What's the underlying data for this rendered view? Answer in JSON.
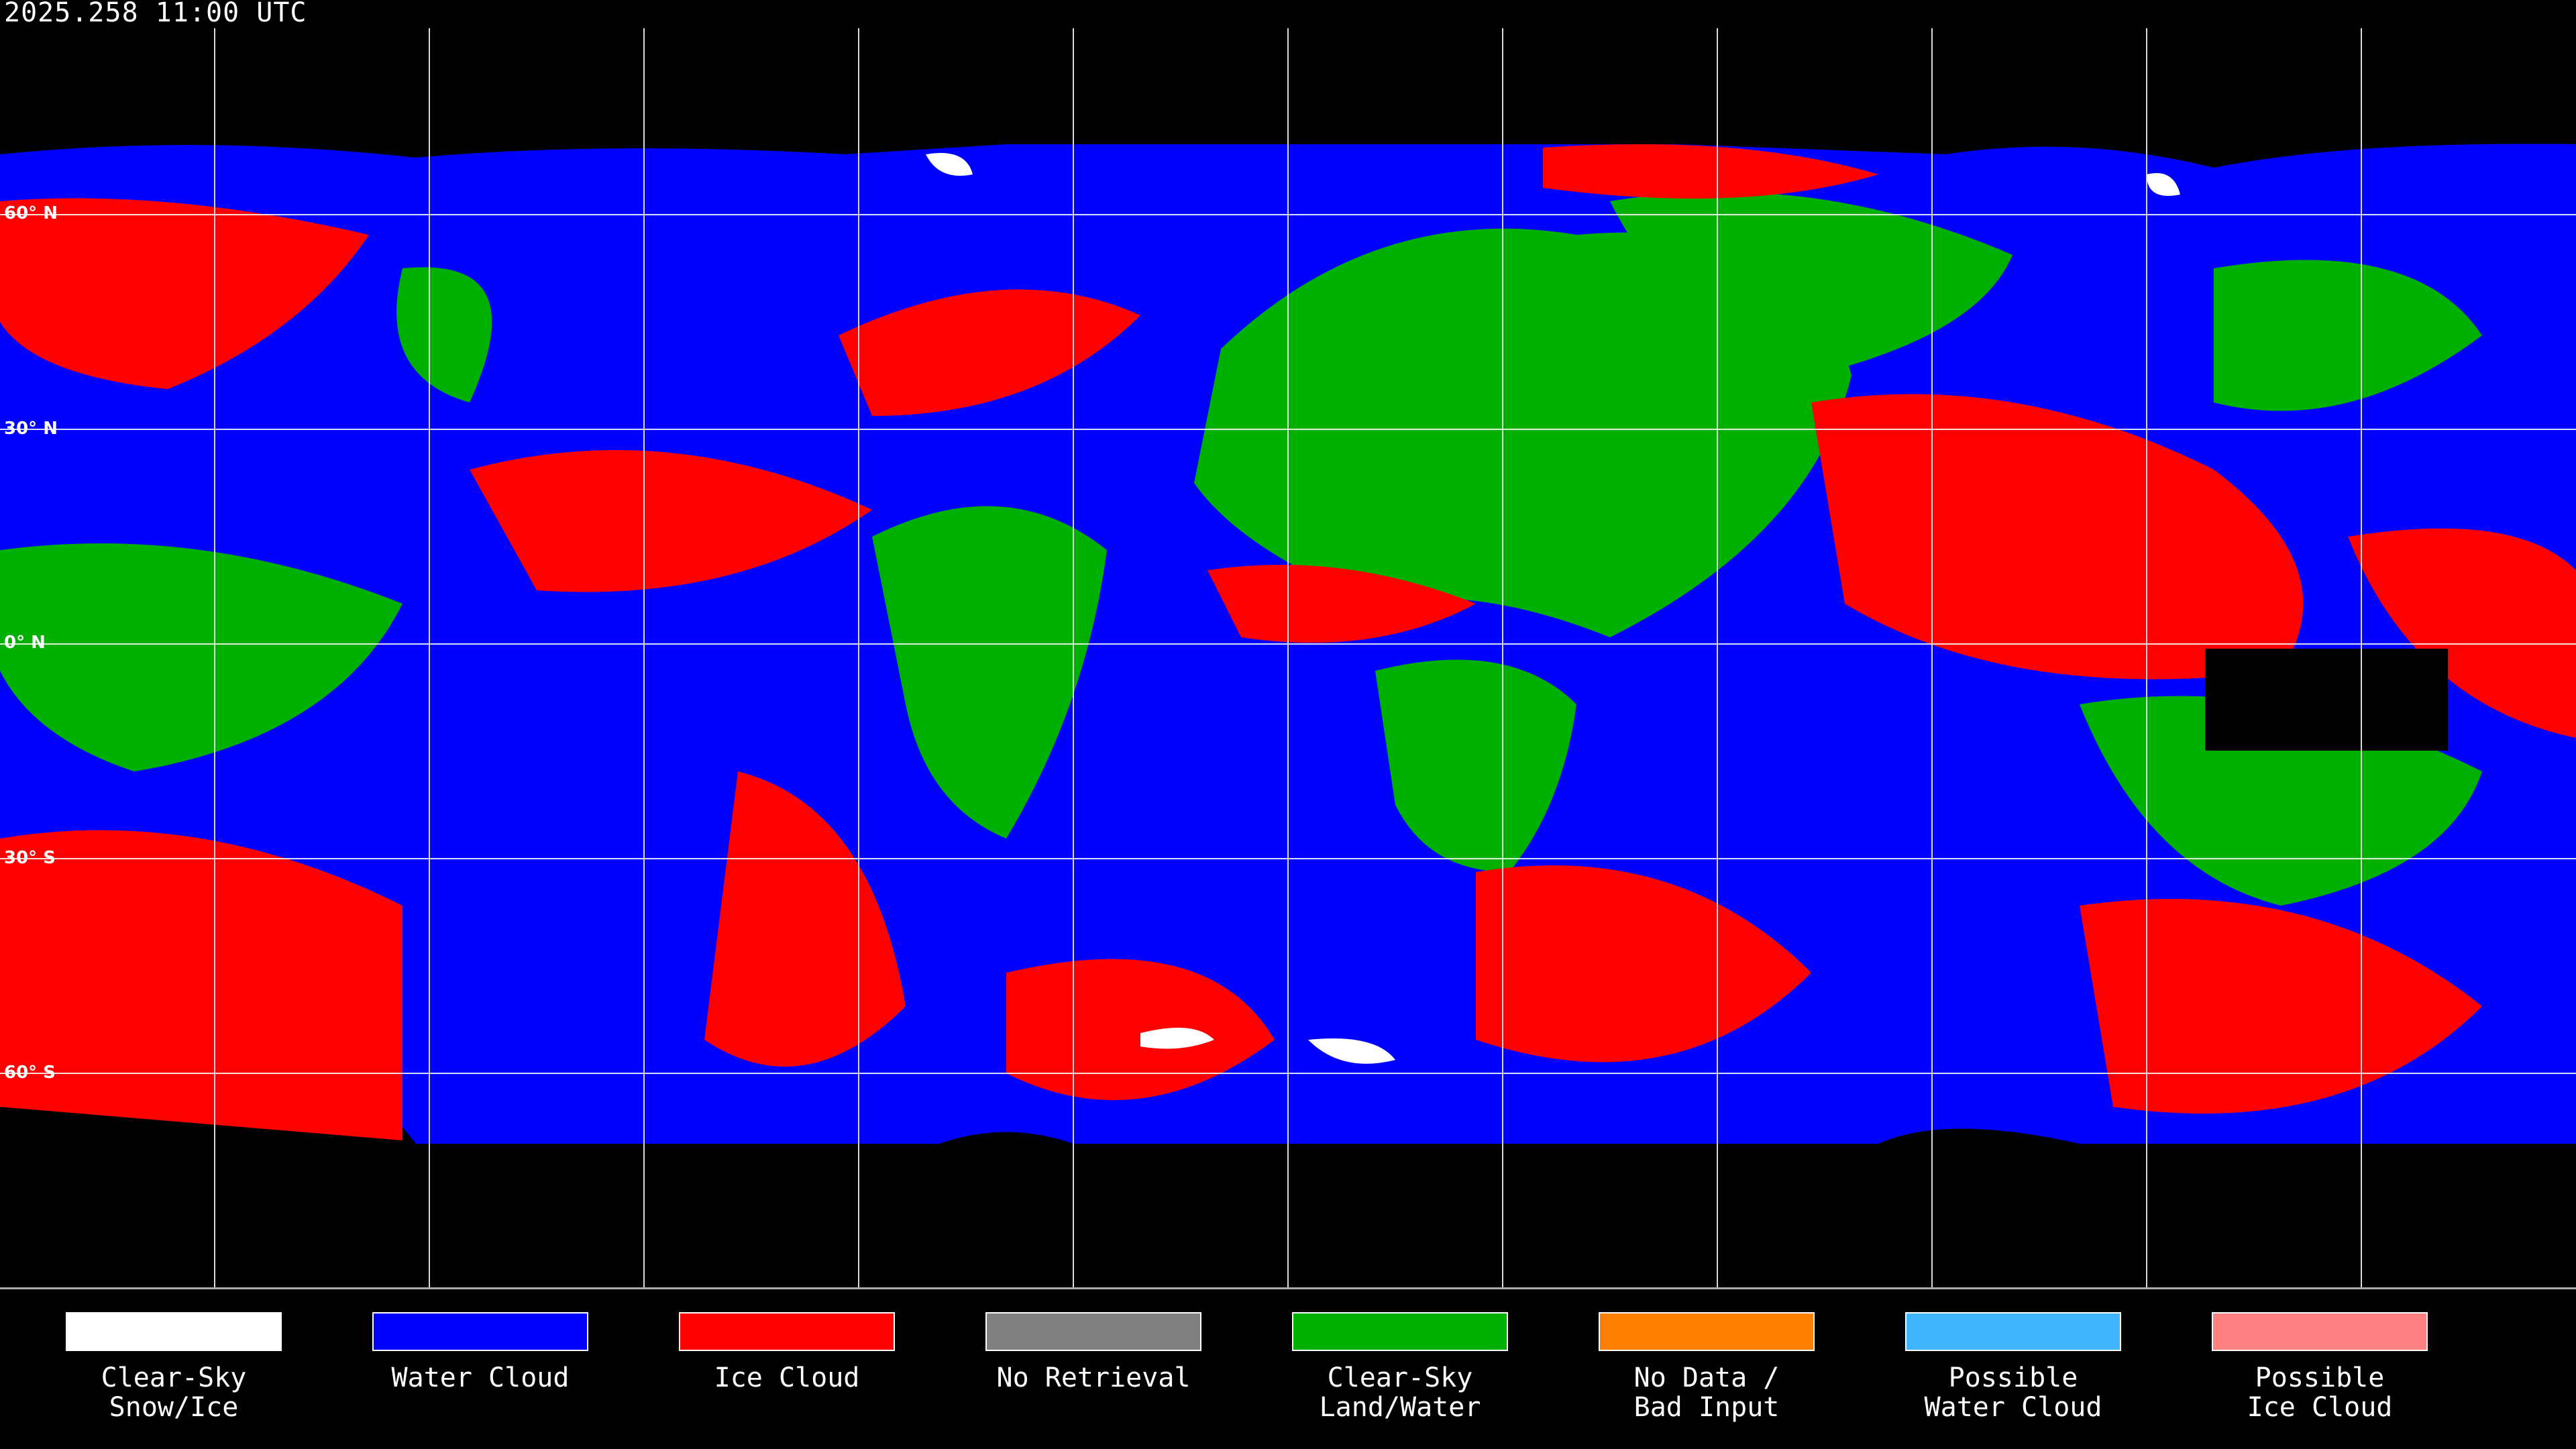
{
  "title": "2025.258 11:00 UTC",
  "latitude_labels": [
    "60° N",
    "30° N",
    "0° N",
    "30° S",
    "60° S"
  ],
  "legend": [
    {
      "label": "Clear-Sky\nSnow/Ice",
      "color": "#ffffff"
    },
    {
      "label": "Water Cloud",
      "color": "#0000ff"
    },
    {
      "label": "Ice Cloud",
      "color": "#ff0000"
    },
    {
      "label": "No Retrieval",
      "color": "#808080"
    },
    {
      "label": "Clear-Sky\nLand/Water",
      "color": "#00b000"
    },
    {
      "label": "No Data /\nBad Input",
      "color": "#ff8000"
    },
    {
      "label": "Possible\nWater Cloud",
      "color": "#40b4ff"
    },
    {
      "label": "Possible\nIce Cloud",
      "color": "#ff8080"
    }
  ]
}
